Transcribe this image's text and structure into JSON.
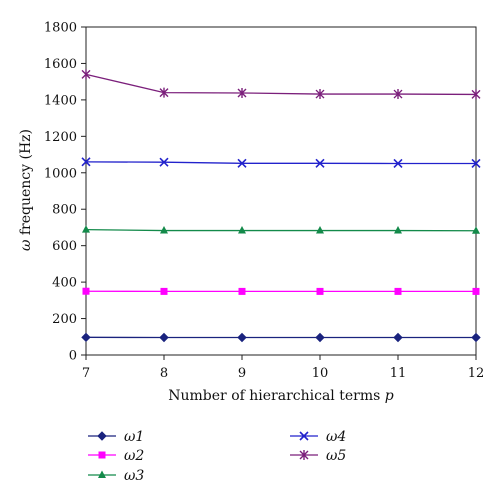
{
  "chart_data": {
    "type": "line",
    "xlabel": "Number of hierarchical terms",
    "xlabel_var": "p",
    "ylabel_var": "ω",
    "ylabel": "frequency (Hz)",
    "x": [
      7,
      8,
      9,
      10,
      11,
      12
    ],
    "xlim": [
      7,
      12
    ],
    "ylim": [
      0,
      1800
    ],
    "yticks": [
      0,
      200,
      400,
      600,
      800,
      1000,
      1200,
      1400,
      1600,
      1800
    ],
    "xticks": [
      7,
      8,
      9,
      10,
      11,
      12
    ],
    "grid": false,
    "legend_position": "bottom",
    "series": [
      {
        "key": "w1",
        "name": "ω1",
        "color": "#1a237e",
        "marker": "diamond",
        "values": [
          97,
          96,
          96,
          96,
          96,
          96
        ]
      },
      {
        "key": "w2",
        "name": "ω2",
        "color": "#ff00ff",
        "marker": "square",
        "values": [
          350,
          349,
          349,
          349,
          349,
          349
        ]
      },
      {
        "key": "w3",
        "name": "ω3",
        "color": "#138a4a",
        "marker": "triangle",
        "values": [
          688,
          683,
          683,
          683,
          683,
          682
        ]
      },
      {
        "key": "w4",
        "name": "ω4",
        "color": "#2222cc",
        "marker": "x",
        "values": [
          1060,
          1058,
          1052,
          1052,
          1051,
          1051
        ]
      },
      {
        "key": "w5",
        "name": "ω5",
        "color": "#7b1f7b",
        "marker": "star",
        "values": [
          1540,
          1440,
          1438,
          1432,
          1432,
          1430
        ]
      }
    ]
  }
}
